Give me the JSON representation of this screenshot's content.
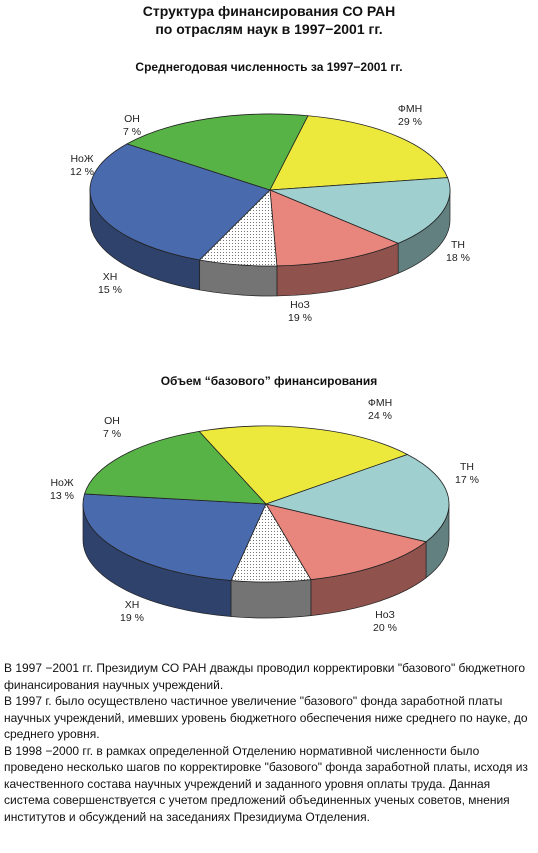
{
  "title_line1": "Структура финансирования СО РАН",
  "title_line2": "по отраслям наук в 1997−2001 гг.",
  "colors": {
    "ФМН": "#4a6aae",
    "ТН": "#58b347",
    "НоЗ": "#ede93c",
    "ХН": "#9fcfcf",
    "НоЖ": "#e8857c",
    "ОН": "#ffffff"
  },
  "chart_data": [
    {
      "type": "pie",
      "title": "Среднегодовая численность за 1997−2001 гг.",
      "slices": [
        {
          "name": "ФМН",
          "value": 29,
          "label": "29 %"
        },
        {
          "name": "ТН",
          "value": 18,
          "label": "18 %"
        },
        {
          "name": "НоЗ",
          "value": 19,
          "label": "19 %"
        },
        {
          "name": "ХН",
          "value": 15,
          "label": "15 %"
        },
        {
          "name": "НоЖ",
          "value": 12,
          "label": "12 %"
        },
        {
          "name": "ОН",
          "value": 7,
          "label": "7 %"
        }
      ]
    },
    {
      "type": "pie",
      "title": "Объем “базового” финансирования",
      "slices": [
        {
          "name": "ФМН",
          "value": 24,
          "label": "24 %"
        },
        {
          "name": "ТН",
          "value": 17,
          "label": "17 %"
        },
        {
          "name": "НоЗ",
          "value": 20,
          "label": "20 %"
        },
        {
          "name": "ХН",
          "value": 19,
          "label": "19 %"
        },
        {
          "name": "НоЖ",
          "value": 13,
          "label": "13 %"
        },
        {
          "name": "ОН",
          "value": 7,
          "label": "7 %"
        }
      ]
    }
  ],
  "paragraphs": [
    "В 1997 −2001 гг. Президиум СО РАН дважды проводил корректировки \"базового\" бюджетного финансирования научных учреждений.",
    "В 1997 г. было осуществлено частичное увеличение \"базового\" фонда заработной платы научных учреждений, имевших уровень бюджетного обеспечения ниже среднего по науке, до среднего уровня.",
    "В 1998 −2000 гг. в рамках определенной Отделению нормативной численности было проведено несколько шагов по корректировке \"базового\" фонда заработной платы, исходя из качественного состава научных учреждений и заданного уровня оплаты труда. Данная система совершенствуется с учетом предложений объединенных ученых советов, мнения институтов и обсуждений на заседаниях Президиума Отделения."
  ]
}
